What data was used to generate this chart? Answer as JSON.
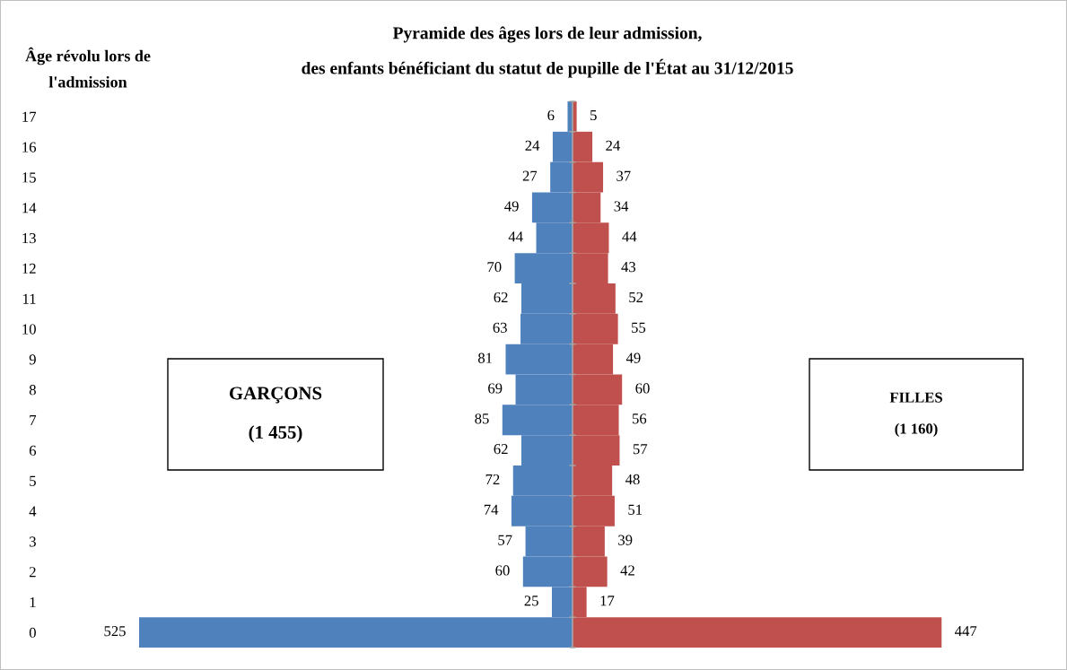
{
  "chart_data": [
    {
      "type": "bar",
      "orientation": "horizontal",
      "title": "Pyramide des âges lors de leur admission,\ndes enfants bénéficiant du statut de pupille de l'État au 31/12/2015",
      "ylabel": "Âge révolu lors de\nl'admission",
      "categories": [
        "17",
        "16",
        "15",
        "14",
        "13",
        "12",
        "11",
        "10",
        "9",
        "8",
        "7",
        "6",
        "5",
        "4",
        "3",
        "2",
        "1",
        "0"
      ],
      "series": [
        {
          "color": "#4f81bd",
          "values": [
            6,
            24,
            27,
            49,
            44,
            70,
            62,
            63,
            81,
            69,
            85,
            62,
            72,
            74,
            57,
            60,
            25,
            525
          ]
        }
      ],
      "data_labels": true,
      "tick_labels": "y",
      "annotations": [
        "GARÇONS\n\n(1 455)"
      ]
    },
    {
      "type": "bar",
      "orientation": "horizontal",
      "categories": [
        "17",
        "16",
        "15",
        "14",
        "13",
        "12",
        "11",
        "10",
        "9",
        "8",
        "7",
        "6",
        "5",
        "4",
        "3",
        "2",
        "1",
        "0"
      ],
      "series": [
        {
          "color": "#c0504d",
          "values": [
            5,
            24,
            37,
            34,
            44,
            43,
            52,
            55,
            49,
            60,
            56,
            57,
            48,
            51,
            39,
            42,
            17,
            447
          ]
        }
      ],
      "data_labels": true,
      "tick_labels": false,
      "annotations": [
        "FILLES\n\n(1 160)"
      ]
    }
  ]
}
